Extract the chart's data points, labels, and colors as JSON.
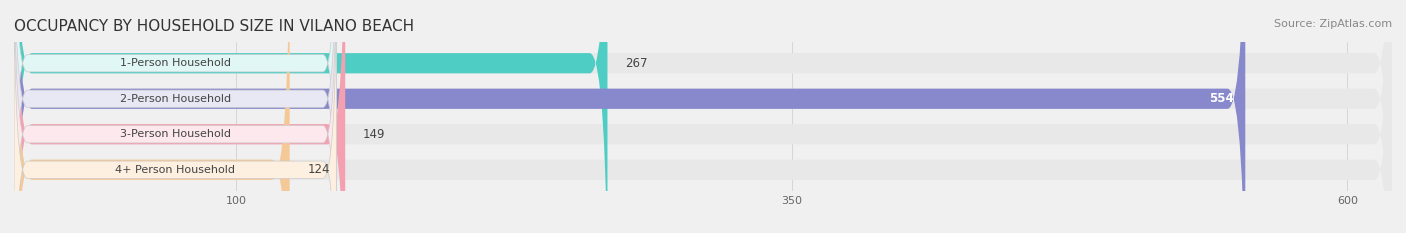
{
  "title": "OCCUPANCY BY HOUSEHOLD SIZE IN VILANO BEACH",
  "source": "Source: ZipAtlas.com",
  "categories": [
    "1-Person Household",
    "2-Person Household",
    "3-Person Household",
    "4+ Person Household"
  ],
  "values": [
    267,
    554,
    149,
    124
  ],
  "bar_colors": [
    "#4ecdc4",
    "#8888cc",
    "#f4a0b0",
    "#f5c897"
  ],
  "label_bg_colors": [
    "#e0f7f5",
    "#e8e8f5",
    "#fce8ed",
    "#fdf0e0"
  ],
  "xlim": [
    0,
    620
  ],
  "xticks": [
    100,
    350,
    600
  ],
  "bar_height": 0.55,
  "background_color": "#f0f0f0",
  "bar_background_color": "#e8e8e8",
  "title_fontsize": 11,
  "source_fontsize": 8,
  "label_fontsize": 8,
  "value_fontsize": 8.5
}
